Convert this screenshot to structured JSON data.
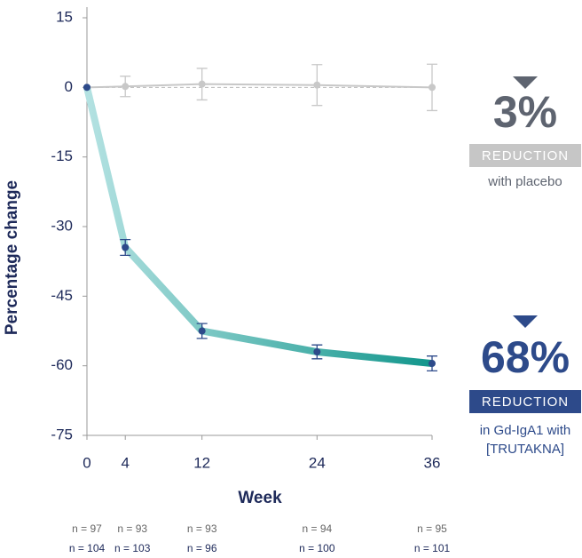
{
  "chart_data": {
    "type": "line",
    "ylabel": "Percentage change",
    "xlabel": "Week",
    "x": [
      0,
      4,
      12,
      24,
      36
    ],
    "xlim": [
      0,
      36
    ],
    "xticks": [
      0,
      4,
      12,
      24,
      36
    ],
    "ylim": [
      -75,
      15
    ],
    "yticks": [
      15,
      0,
      -15,
      -30,
      -45,
      -60,
      -75
    ],
    "series": [
      {
        "color": "#c8c8c8",
        "values": [
          0,
          0.2,
          0.7,
          0.5,
          0
        ],
        "errors": [
          0,
          2.2,
          3.4,
          4.4,
          5
        ]
      },
      {
        "color": "#1a9a90",
        "values": [
          0,
          -34.5,
          -52.5,
          -57,
          -59.5
        ],
        "errors": [
          0,
          1.7,
          1.6,
          1.5,
          1.6
        ]
      }
    ],
    "callouts": [
      {
        "value": "3%",
        "label": "REDUCTION",
        "note": [
          "with placebo"
        ]
      },
      {
        "value": "68%",
        "label": "REDUCTION",
        "note": [
          "in Gd-IgA1 with",
          "[TRUTAKNA]"
        ]
      }
    ],
    "n_counts": [
      [
        "n = 97",
        "n = 93",
        "n = 93",
        "n = 94",
        "n = 95"
      ],
      [
        "n = 104",
        "n = 103",
        "n = 96",
        "n = 100",
        "n = 101"
      ]
    ]
  }
}
